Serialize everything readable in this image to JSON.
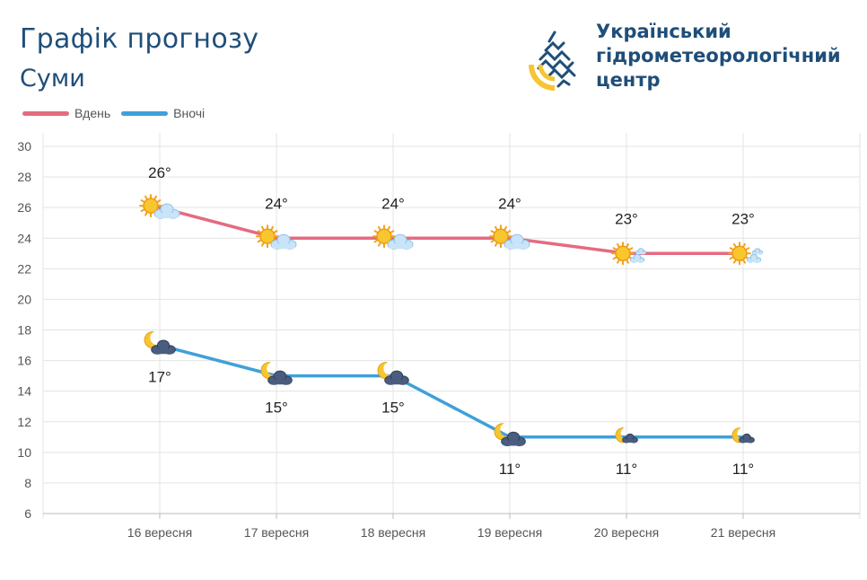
{
  "header": {
    "title": "Графік прогнозу",
    "city": "Суми"
  },
  "organization": {
    "name_lines": [
      "Український",
      "гідрометеорологічний",
      "центр"
    ]
  },
  "legend": [
    {
      "label": "Вдень",
      "color": "#e46b80"
    },
    {
      "label": "Вночі",
      "color": "#3fa0d9"
    }
  ],
  "colors": {
    "day_line": "#e46b80",
    "night_line": "#3fa0d9",
    "logo_blue": "#1f4e79",
    "logo_yellow": "#f6c531",
    "grid": "#e3e3e3"
  },
  "chart_data": {
    "type": "line",
    "categories": [
      "16 вересня",
      "17 вересня",
      "18 вересня",
      "19 вересня",
      "20 вересня",
      "21 вересня"
    ],
    "series": [
      {
        "name": "Вдень",
        "values": [
          26,
          24,
          24,
          24,
          23,
          23
        ],
        "labels": [
          "26°",
          "24°",
          "24°",
          "24°",
          "23°",
          "23°"
        ],
        "icons": [
          "sun-cloud-icon",
          "sun-cloud-icon",
          "sun-cloud-icon",
          "sun-cloud-icon",
          "sun-small-cloud-icon",
          "sun-small-cloud-icon"
        ]
      },
      {
        "name": "Вночі",
        "values": [
          17,
          15,
          15,
          11,
          11,
          11
        ],
        "labels": [
          "17°",
          "15°",
          "15°",
          "11°",
          "11°",
          "11°"
        ],
        "icons": [
          "moon-cloud-icon",
          "moon-cloud-icon",
          "moon-cloud-icon",
          "moon-cloud-icon",
          "moon-small-cloud-icon",
          "moon-small-cloud-icon"
        ]
      }
    ],
    "ylim": [
      6,
      30
    ],
    "yticks": [
      6,
      8,
      10,
      12,
      14,
      16,
      18,
      20,
      22,
      24,
      26,
      28,
      30
    ],
    "grid": true,
    "legend_position": "top-left"
  }
}
